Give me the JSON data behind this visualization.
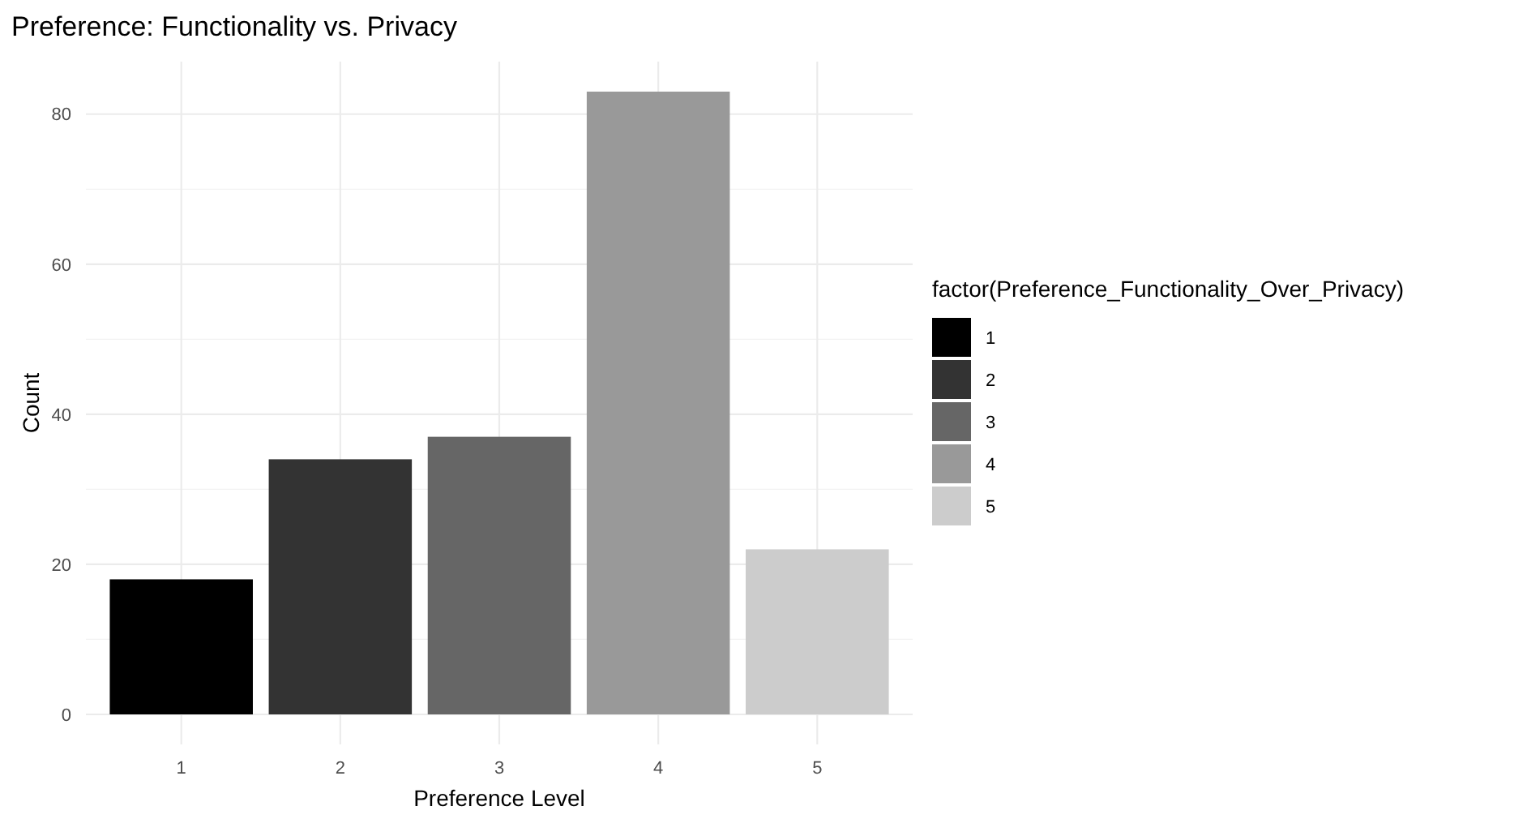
{
  "chart_data": {
    "type": "bar",
    "title": "Preference: Functionality vs. Privacy",
    "xlabel": "Preference Level",
    "ylabel": "Count",
    "legend_title": "factor(Preference_Functionality_Over_Privacy)",
    "categories": [
      "1",
      "2",
      "3",
      "4",
      "5"
    ],
    "series": [
      {
        "name": "1",
        "color": "#000000",
        "values": [
          18,
          null,
          null,
          null,
          null
        ]
      },
      {
        "name": "2",
        "color": "#333333",
        "values": [
          null,
          34,
          null,
          null,
          null
        ]
      },
      {
        "name": "3",
        "color": "#666666",
        "values": [
          null,
          null,
          37,
          null,
          null
        ]
      },
      {
        "name": "4",
        "color": "#999999",
        "values": [
          null,
          null,
          null,
          83,
          null
        ]
      },
      {
        "name": "5",
        "color": "#cccccc",
        "values": [
          null,
          null,
          null,
          null,
          22
        ]
      }
    ],
    "ylim": [
      -4,
      87
    ],
    "yticks": [
      0,
      20,
      40,
      60,
      80
    ],
    "grid": true,
    "legend": "right"
  }
}
